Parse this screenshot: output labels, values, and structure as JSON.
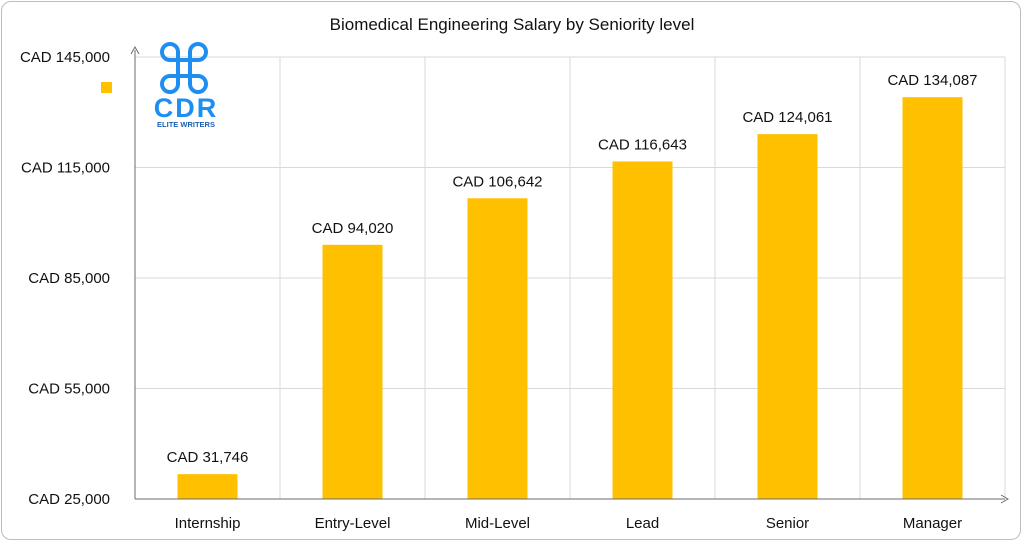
{
  "chart_data": {
    "type": "bar",
    "title": "Biomedical Engineering Salary by Seniority level",
    "categories": [
      "Internship",
      "Entry-Level",
      "Mid-Level",
      "Lead",
      "Senior",
      "Manager"
    ],
    "values": [
      31746,
      94020,
      106642,
      116643,
      124061,
      134087
    ],
    "data_labels": [
      "CAD 31,746",
      "CAD 94,020",
      "CAD 106,642",
      "CAD 116,643",
      "CAD 124,061",
      "CAD 134,087"
    ],
    "y_ticks": [
      25000,
      55000,
      85000,
      115000,
      145000
    ],
    "y_tick_labels": [
      "CAD 25,000",
      "CAD 55,000",
      "CAD 85,000",
      "CAD 115,000",
      "CAD 145,000"
    ],
    "ylim": [
      25000,
      145000
    ],
    "xlabel": "",
    "ylabel": "",
    "grid": true,
    "legend": "top-left",
    "bar_color": "#FFC000"
  },
  "logo": {
    "text": "CDR",
    "tagline": "ELITE WRITERS",
    "color": "#1e8ff0",
    "tagline_color": "#1a5fb4"
  }
}
